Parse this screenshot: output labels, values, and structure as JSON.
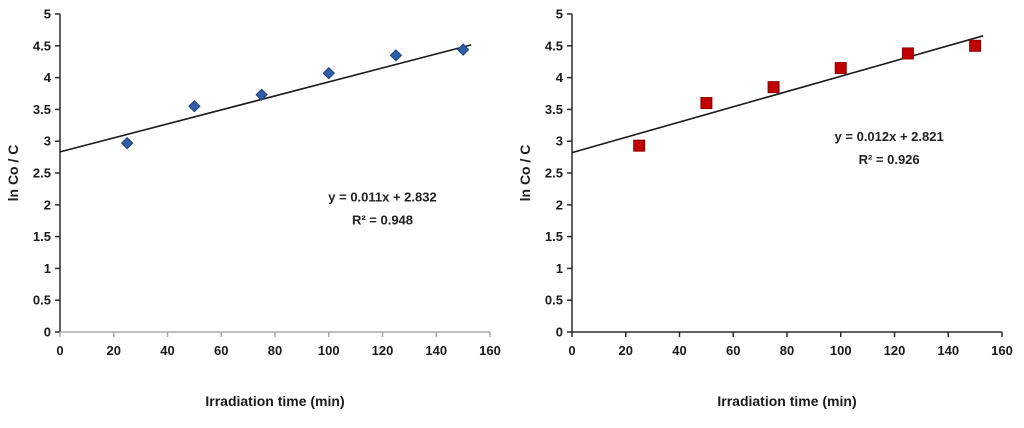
{
  "chart_data": [
    {
      "type": "scatter",
      "title": "",
      "xlabel": "Irradiation time (min)",
      "ylabel": "ln Co / C",
      "xlim": [
        0,
        160
      ],
      "ylim": [
        0,
        5
      ],
      "xticks": [
        0,
        20,
        40,
        60,
        80,
        100,
        120,
        140,
        160
      ],
      "yticks": [
        0,
        0.5,
        1,
        1.5,
        2,
        2.5,
        3,
        3.5,
        4,
        4.5,
        5
      ],
      "grid": false,
      "legend": "none",
      "marker": "diamond",
      "marker_color": "#2E5FA8",
      "marker_edge": "#1E4480",
      "x": [
        25,
        50,
        75,
        100,
        125,
        150
      ],
      "y": [
        2.97,
        3.55,
        3.73,
        4.07,
        4.35,
        4.44
      ],
      "trendline": {
        "slope": 0.011,
        "intercept": 2.832,
        "x_start": 0,
        "x_end": 153,
        "color": "#1a1a1a"
      },
      "equation": "y = 0.011x + 2.832",
      "r_squared": "R² = 0.948",
      "annotation_pos": {
        "x": 120,
        "y": 2.05
      },
      "axis_color": {
        "x": "#A8A8A8",
        "y": "#2b2b2b"
      }
    },
    {
      "type": "scatter",
      "title": "",
      "xlabel": "Irradiation time (min)",
      "ylabel": "ln Co / C",
      "xlim": [
        0,
        160
      ],
      "ylim": [
        0,
        5
      ],
      "xticks": [
        0,
        20,
        40,
        60,
        80,
        100,
        120,
        140,
        160
      ],
      "yticks": [
        0,
        0.5,
        1,
        1.5,
        2,
        2.5,
        3,
        3.5,
        4,
        4.5,
        5
      ],
      "grid": false,
      "legend": "none",
      "marker": "square",
      "marker_color": "#C00000",
      "marker_edge": "#8f0000",
      "x": [
        25,
        50,
        75,
        100,
        125,
        150
      ],
      "y": [
        2.93,
        3.6,
        3.85,
        4.15,
        4.38,
        4.5
      ],
      "trendline": {
        "slope": 0.012,
        "intercept": 2.821,
        "x_start": 0,
        "x_end": 153,
        "color": "#1a1a1a"
      },
      "equation": "y = 0.012x + 2.821",
      "r_squared": "R² = 0.926",
      "annotation_pos": {
        "x": 118,
        "y": 3.0
      },
      "axis_color": {
        "x": "#2b2b2b",
        "y": "#2b2b2b"
      }
    }
  ]
}
